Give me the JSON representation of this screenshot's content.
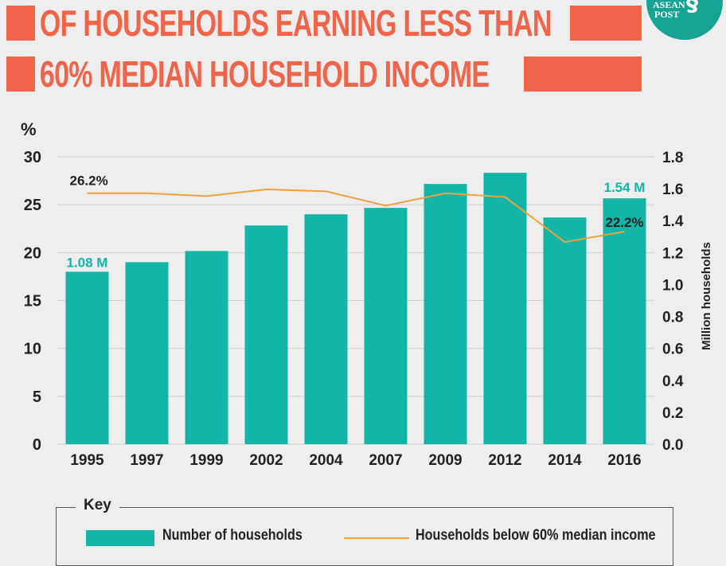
{
  "header": {
    "title_line1": "OF HOUSEHOLDS EARNING LESS THAN",
    "title_line2": "60% MEDIAN HOUSEHOLD INCOME",
    "title_color": "#f06449"
  },
  "logo": {
    "line1": "ASEAN",
    "line2": "POST",
    "icon": "caduceus-icon",
    "color": "#16a394"
  },
  "chart_data": {
    "type": "bar",
    "categories": [
      "1995",
      "1997",
      "1999",
      "2002",
      "2004",
      "2007",
      "2009",
      "2012",
      "2014",
      "2016"
    ],
    "series": [
      {
        "name": "Number of households",
        "type": "bar",
        "axis": "right",
        "color": "#12b5a8",
        "values": [
          1.08,
          1.14,
          1.21,
          1.37,
          1.44,
          1.48,
          1.63,
          1.7,
          1.42,
          1.54
        ]
      },
      {
        "name": "Households below 60% median income",
        "type": "line",
        "axis": "left",
        "color": "#f5a13a",
        "values": [
          26.2,
          26.2,
          25.9,
          26.6,
          26.4,
          24.9,
          26.2,
          25.8,
          21.1,
          22.2
        ]
      }
    ],
    "left_axis": {
      "label": "%",
      "min": 0,
      "max": 30,
      "ticks": [
        "0",
        "5",
        "10",
        "15",
        "20",
        "25",
        "30"
      ]
    },
    "right_axis": {
      "label": "Million households",
      "min": 0,
      "max": 1.8,
      "ticks": [
        "0.0",
        "0.2",
        "0.4",
        "0.6",
        "0.8",
        "1.0",
        "1.2",
        "1.4",
        "1.6",
        "1.8"
      ]
    },
    "annotations": [
      {
        "text": "26.2%",
        "series": 1,
        "index": 0
      },
      {
        "text": "1.08 M",
        "series": 0,
        "index": 0
      },
      {
        "text": "1.54 M",
        "series": 0,
        "index": 9
      },
      {
        "text": "22.2%",
        "series": 1,
        "index": 9
      }
    ],
    "grid": true,
    "legend": {
      "title": "Key",
      "placement": "bottom"
    }
  }
}
